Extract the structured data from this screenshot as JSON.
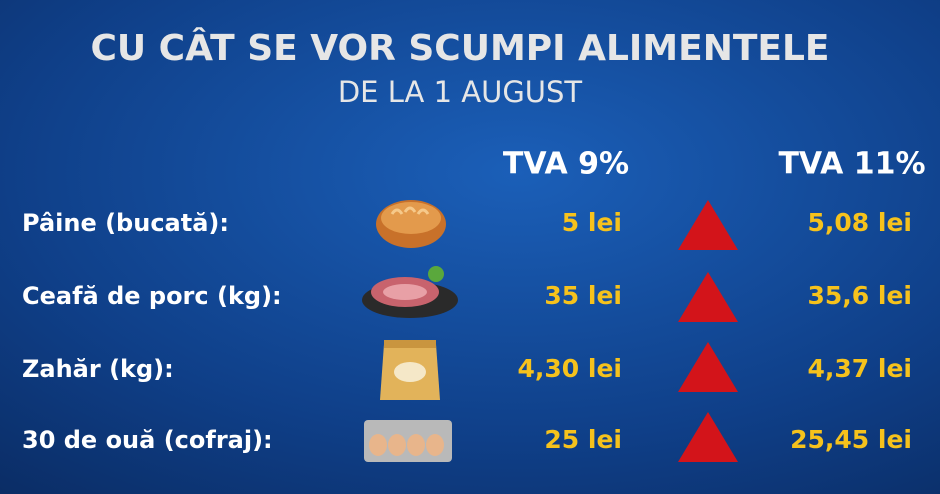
{
  "header": {
    "title": "CU CÂT SE VOR SCUMPI ALIMENTELE",
    "subtitle": "DE LA 1 AUGUST"
  },
  "table": {
    "columns": [
      "TVA 9%",
      "TVA 11%"
    ],
    "rows": [
      [
        "Pâine (bucată):",
        "5 lei",
        "5,08 lei"
      ],
      [
        "Ceafă de porc (kg):",
        "35 lei",
        "35,6 lei"
      ],
      [
        "Zahăr (kg):",
        "4,30 lei",
        "4,37 lei"
      ],
      [
        "30 de ouă (cofraj):",
        "25 lei",
        "25,45 lei"
      ]
    ]
  }
}
